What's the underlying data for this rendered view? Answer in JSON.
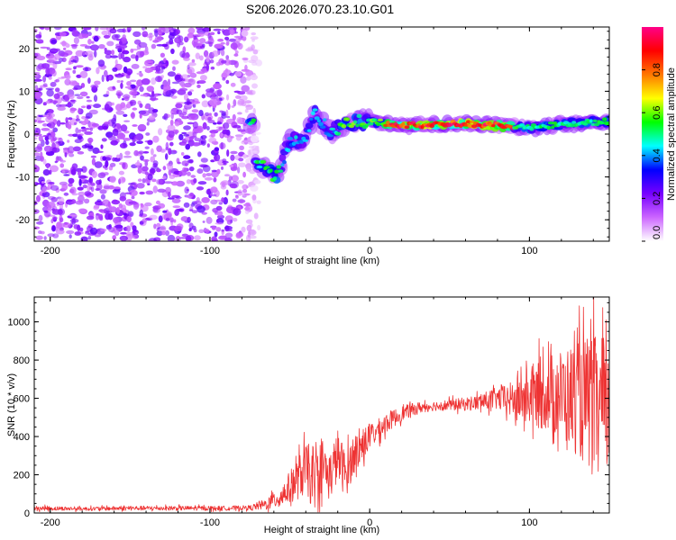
{
  "figure_title": "S206.2026.070.23.10.G01",
  "chart_data": [
    {
      "type": "heatmap",
      "name": "spectrogram",
      "xlabel": "Height of straight line (km)",
      "ylabel": "Frequency (Hz)",
      "xlim": [
        -210,
        150
      ],
      "ylim": [
        -25,
        25
      ],
      "xticks": [
        -200,
        -100,
        0,
        100
      ],
      "yticks": [
        -20,
        -10,
        0,
        10,
        20
      ],
      "colorbar": {
        "label": "Normalized spectral amplitude",
        "range": [
          0,
          1
        ],
        "ticks": [
          0.0,
          0.2,
          0.4,
          0.6,
          0.8
        ],
        "colormap": [
          "#ffffff",
          "#cc66ff",
          "#7700ff",
          "#0000ff",
          "#00ffff",
          "#00ff00",
          "#ffff00",
          "#ff7700",
          "#ff0000",
          "#ff0088"
        ]
      },
      "noise_region_km": [
        -210,
        -75
      ],
      "ridge_points": [
        {
          "x": -72,
          "y": -6.5
        },
        {
          "x": -65,
          "y": -8
        },
        {
          "x": -58,
          "y": -10
        },
        {
          "x": -50,
          "y": -1.5
        },
        {
          "x": -40,
          "y": -1
        },
        {
          "x": -35,
          "y": 5
        },
        {
          "x": -25,
          "y": 0.5
        },
        {
          "x": -15,
          "y": 2.5
        },
        {
          "x": 0,
          "y": 3
        },
        {
          "x": 20,
          "y": 2
        },
        {
          "x": 60,
          "y": 2.5
        },
        {
          "x": 100,
          "y": 1.5
        },
        {
          "x": 125,
          "y": 2.5
        },
        {
          "x": 150,
          "y": 3
        }
      ]
    },
    {
      "type": "line",
      "name": "snr",
      "xlabel": "Height of straight line (km)",
      "ylabel": "SNR (10 * v/v)",
      "xlim": [
        -210,
        150
      ],
      "ylim": [
        0,
        1130
      ],
      "xticks": [
        -200,
        -100,
        0,
        100
      ],
      "yticks": [
        0,
        200,
        400,
        600,
        800,
        1000
      ],
      "color": "#ee3333",
      "series": [
        {
          "name": "SNR",
          "x": [
            -210,
            -180,
            -150,
            -120,
            -90,
            -75,
            -65,
            -55,
            -45,
            -40,
            -35,
            -30,
            -25,
            -20,
            -15,
            -10,
            -5,
            0,
            5,
            10,
            20,
            30,
            40,
            50,
            60,
            70,
            80,
            90,
            100,
            110,
            120,
            130,
            140,
            150
          ],
          "y": [
            25,
            22,
            25,
            25,
            25,
            28,
            45,
            90,
            180,
            230,
            150,
            260,
            190,
            300,
            200,
            310,
            350,
            400,
            430,
            470,
            520,
            550,
            560,
            565,
            570,
            580,
            600,
            590,
            610,
            630,
            620,
            600,
            560,
            520
          ],
          "spread": [
            12,
            10,
            12,
            12,
            12,
            12,
            30,
            60,
            110,
            140,
            140,
            150,
            130,
            140,
            120,
            110,
            90,
            70,
            60,
            55,
            40,
            30,
            25,
            30,
            35,
            45,
            60,
            100,
            160,
            200,
            240,
            300,
            380,
            330
          ]
        }
      ]
    }
  ]
}
